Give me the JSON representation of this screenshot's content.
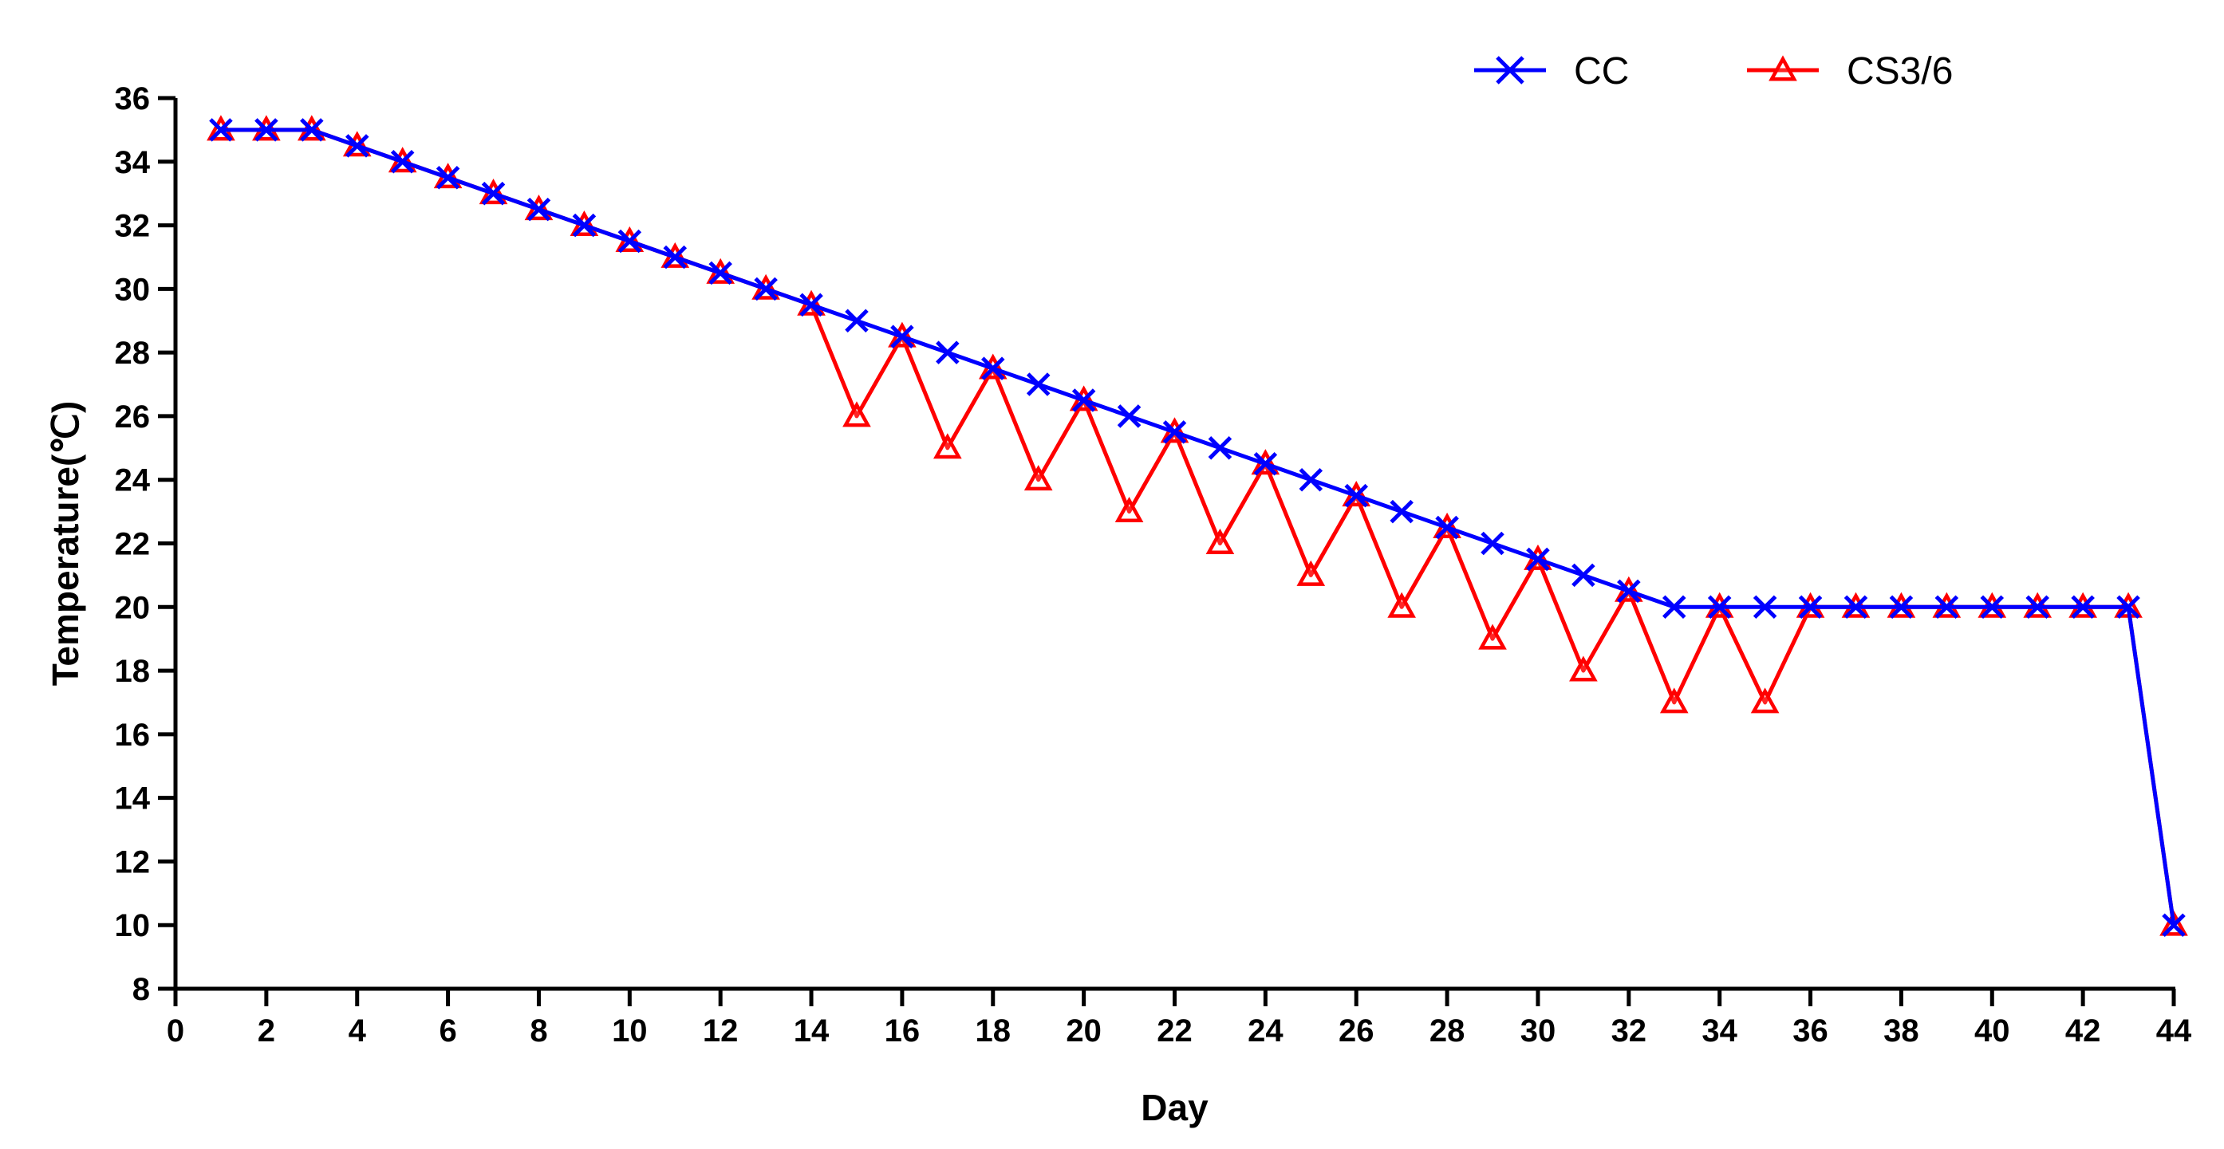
{
  "chart_data": {
    "type": "line",
    "xlabel": "Day",
    "ylabel": "Temperature(℃)",
    "xlim": [
      0,
      44
    ],
    "ylim": [
      8,
      36
    ],
    "xticks": [
      0,
      2,
      4,
      6,
      8,
      10,
      12,
      14,
      16,
      18,
      20,
      22,
      24,
      26,
      28,
      30,
      32,
      34,
      36,
      38,
      40,
      42,
      44
    ],
    "yticks": [
      8,
      10,
      12,
      14,
      16,
      18,
      20,
      22,
      24,
      26,
      28,
      30,
      32,
      34,
      36
    ],
    "grid": false,
    "legend_position": "top",
    "series": [
      {
        "name": "CC",
        "color": "#0000ff",
        "marker": "x-cross",
        "points": [
          [
            1,
            35
          ],
          [
            2,
            35
          ],
          [
            3,
            35
          ],
          [
            4,
            34.5
          ],
          [
            5,
            34
          ],
          [
            6,
            33.5
          ],
          [
            7,
            33
          ],
          [
            8,
            32.5
          ],
          [
            9,
            32
          ],
          [
            10,
            31.5
          ],
          [
            11,
            31
          ],
          [
            12,
            30.5
          ],
          [
            13,
            30
          ],
          [
            14,
            29.5
          ],
          [
            15,
            29
          ],
          [
            16,
            28.5
          ],
          [
            17,
            28
          ],
          [
            18,
            27.5
          ],
          [
            19,
            27
          ],
          [
            20,
            26.5
          ],
          [
            21,
            26
          ],
          [
            22,
            25.5
          ],
          [
            23,
            25
          ],
          [
            24,
            24.5
          ],
          [
            25,
            24
          ],
          [
            26,
            23.5
          ],
          [
            27,
            23
          ],
          [
            28,
            22.5
          ],
          [
            29,
            22
          ],
          [
            30,
            21.5
          ],
          [
            31,
            21
          ],
          [
            32,
            20.5
          ],
          [
            33,
            20
          ],
          [
            34,
            20
          ],
          [
            35,
            20
          ],
          [
            36,
            20
          ],
          [
            37,
            20
          ],
          [
            38,
            20
          ],
          [
            39,
            20
          ],
          [
            40,
            20
          ],
          [
            41,
            20
          ],
          [
            42,
            20
          ],
          [
            43,
            20
          ],
          [
            44,
            10
          ]
        ]
      },
      {
        "name": "CS3/6",
        "color": "#ff0000",
        "marker": "triangle",
        "points": [
          [
            1,
            35
          ],
          [
            2,
            35
          ],
          [
            3,
            35
          ],
          [
            4,
            34.5
          ],
          [
            5,
            34
          ],
          [
            6,
            33.5
          ],
          [
            7,
            33
          ],
          [
            8,
            32.5
          ],
          [
            9,
            32
          ],
          [
            10,
            31.5
          ],
          [
            11,
            31
          ],
          [
            12,
            30.5
          ],
          [
            13,
            30
          ],
          [
            14,
            29.5
          ],
          [
            15,
            26
          ],
          [
            16,
            28.5
          ],
          [
            17,
            25
          ],
          [
            18,
            27.5
          ],
          [
            19,
            24
          ],
          [
            20,
            26.5
          ],
          [
            21,
            23
          ],
          [
            22,
            25.5
          ],
          [
            23,
            22
          ],
          [
            24,
            24.5
          ],
          [
            25,
            21
          ],
          [
            26,
            23.5
          ],
          [
            27,
            20
          ],
          [
            28,
            22.5
          ],
          [
            29,
            19
          ],
          [
            30,
            21.5
          ],
          [
            31,
            18
          ],
          [
            32,
            20.5
          ],
          [
            33,
            17
          ],
          [
            34,
            20
          ],
          [
            35,
            17
          ],
          [
            36,
            20
          ],
          [
            37,
            20
          ],
          [
            38,
            20
          ],
          [
            39,
            20
          ],
          [
            40,
            20
          ],
          [
            41,
            20
          ],
          [
            42,
            20
          ],
          [
            43,
            20
          ],
          [
            44,
            10
          ]
        ]
      }
    ]
  }
}
